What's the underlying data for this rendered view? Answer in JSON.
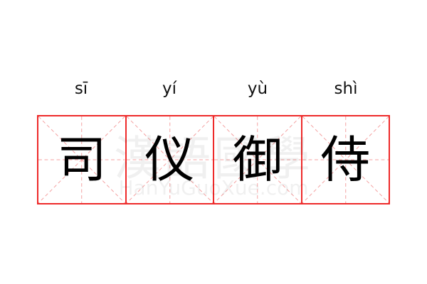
{
  "pinyin": [
    "sī",
    "yí",
    "yù",
    "shì"
  ],
  "characters": [
    "司",
    "仪",
    "御",
    "侍"
  ],
  "watermark": {
    "logo": "漢語國學",
    "site": "HanYuGuoXue.com"
  },
  "colors": {
    "grid_border": "#ee2a2a",
    "guide_lines": "#f4a0a0"
  }
}
